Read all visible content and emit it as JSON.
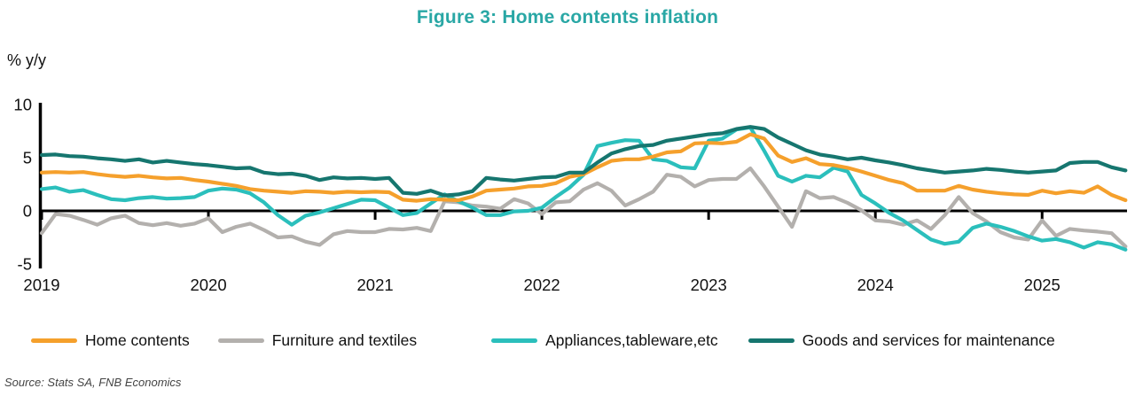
{
  "title": "Figure 3: Home contents inflation",
  "title_color": "#29A7A5",
  "y_axis_unit": "% y/y",
  "source": "Source: Stats SA, FNB Economics",
  "axis_color": "#000000",
  "chart_data": {
    "type": "line",
    "title": "Figure 3: Home contents inflation",
    "xlabel": "",
    "ylabel": "% y/y",
    "ylim": [
      -5,
      10
    ],
    "yticks": [
      10,
      5,
      0,
      -5
    ],
    "x_tick_labels": [
      "2019",
      "2020",
      "2021",
      "2022",
      "2023",
      "2024",
      "2025"
    ],
    "x_start": "2019-01",
    "x_end": "2025-07",
    "frequency": "monthly",
    "grid": false,
    "legend_position": "bottom",
    "series": [
      {
        "name": "Home contents",
        "color": "#F5A02C",
        "values": [
          3.6,
          3.65,
          3.6,
          3.65,
          3.45,
          3.3,
          3.2,
          3.3,
          3.15,
          3.05,
          3.1,
          2.9,
          2.75,
          2.55,
          2.35,
          2.05,
          1.9,
          1.8,
          1.7,
          1.85,
          1.8,
          1.7,
          1.8,
          1.75,
          1.8,
          1.75,
          1.05,
          0.95,
          1.1,
          1.05,
          1.0,
          1.35,
          1.9,
          2.0,
          2.1,
          2.3,
          2.35,
          2.6,
          3.2,
          3.45,
          4.1,
          4.7,
          4.85,
          4.85,
          5.1,
          5.5,
          5.6,
          6.35,
          6.4,
          6.35,
          6.5,
          7.2,
          6.8,
          5.2,
          4.6,
          4.95,
          4.4,
          4.3,
          4.05,
          3.7,
          3.3,
          2.9,
          2.6,
          1.9,
          1.9,
          1.9,
          2.35,
          2.0,
          1.8,
          1.65,
          1.55,
          1.5,
          1.9,
          1.65,
          1.85,
          1.7,
          2.3,
          1.5,
          1.0
        ]
      },
      {
        "name": "Furniture and textiles",
        "color": "#B3B0AD",
        "values": [
          -2.1,
          -0.3,
          -0.45,
          -0.85,
          -1.3,
          -0.7,
          -0.45,
          -1.15,
          -1.35,
          -1.15,
          -1.4,
          -1.2,
          -0.7,
          -2.0,
          -1.5,
          -1.2,
          -1.8,
          -2.5,
          -2.4,
          -2.9,
          -3.2,
          -2.2,
          -1.9,
          -2.0,
          -2.0,
          -1.7,
          -1.75,
          -1.6,
          -1.9,
          0.9,
          0.8,
          0.5,
          0.4,
          0.2,
          1.1,
          0.7,
          -0.3,
          0.8,
          0.9,
          2.0,
          2.6,
          1.9,
          0.5,
          1.1,
          1.8,
          3.4,
          3.2,
          2.3,
          2.9,
          3.0,
          3.0,
          4.0,
          2.3,
          0.4,
          -1.5,
          1.85,
          1.2,
          1.3,
          0.75,
          0.05,
          -0.9,
          -1.0,
          -1.3,
          -0.9,
          -1.7,
          -0.4,
          1.3,
          -0.2,
          -1.0,
          -2.0,
          -2.5,
          -2.7,
          -0.9,
          -2.35,
          -1.7,
          -1.85,
          -1.95,
          -2.1,
          -3.35
        ]
      },
      {
        "name": "Appliances,tableware,etc",
        "color": "#2BBFBC",
        "values": [
          2.05,
          2.2,
          1.8,
          1.95,
          1.5,
          1.1,
          1.0,
          1.2,
          1.3,
          1.15,
          1.2,
          1.3,
          1.9,
          2.1,
          2.0,
          1.65,
          0.8,
          -0.4,
          -1.3,
          -0.45,
          -0.15,
          0.25,
          0.65,
          1.05,
          1.0,
          0.3,
          -0.4,
          -0.2,
          0.7,
          1.55,
          0.9,
          0.3,
          -0.4,
          -0.4,
          -0.05,
          0.0,
          0.3,
          1.3,
          2.2,
          3.4,
          6.1,
          6.4,
          6.65,
          6.6,
          4.85,
          4.7,
          4.1,
          4.0,
          6.6,
          6.8,
          7.65,
          7.85,
          5.65,
          3.3,
          2.75,
          3.3,
          3.15,
          4.05,
          3.7,
          1.5,
          0.7,
          -0.2,
          -0.9,
          -1.8,
          -2.7,
          -3.1,
          -2.9,
          -1.6,
          -1.2,
          -1.5,
          -1.9,
          -2.4,
          -2.8,
          -2.65,
          -2.95,
          -3.45,
          -2.95,
          -3.15,
          -3.65
        ]
      },
      {
        "name": "Goods and services for maintenance",
        "color": "#16766F",
        "values": [
          5.25,
          5.3,
          5.15,
          5.1,
          4.95,
          4.85,
          4.7,
          4.85,
          4.55,
          4.7,
          4.55,
          4.4,
          4.3,
          4.15,
          4.0,
          4.05,
          3.6,
          3.45,
          3.5,
          3.3,
          2.9,
          3.15,
          3.05,
          3.1,
          3.0,
          3.1,
          1.7,
          1.6,
          1.9,
          1.45,
          1.55,
          1.85,
          3.1,
          2.95,
          2.85,
          3.0,
          3.15,
          3.2,
          3.6,
          3.6,
          4.55,
          5.4,
          5.8,
          6.1,
          6.2,
          6.6,
          6.8,
          7.0,
          7.2,
          7.3,
          7.7,
          7.9,
          7.7,
          6.9,
          6.3,
          5.7,
          5.3,
          5.1,
          4.85,
          5.0,
          4.75,
          4.55,
          4.3,
          4.0,
          3.8,
          3.6,
          3.7,
          3.8,
          3.95,
          3.85,
          3.7,
          3.6,
          3.7,
          3.8,
          4.5,
          4.6,
          4.6,
          4.1,
          3.8
        ]
      }
    ]
  }
}
